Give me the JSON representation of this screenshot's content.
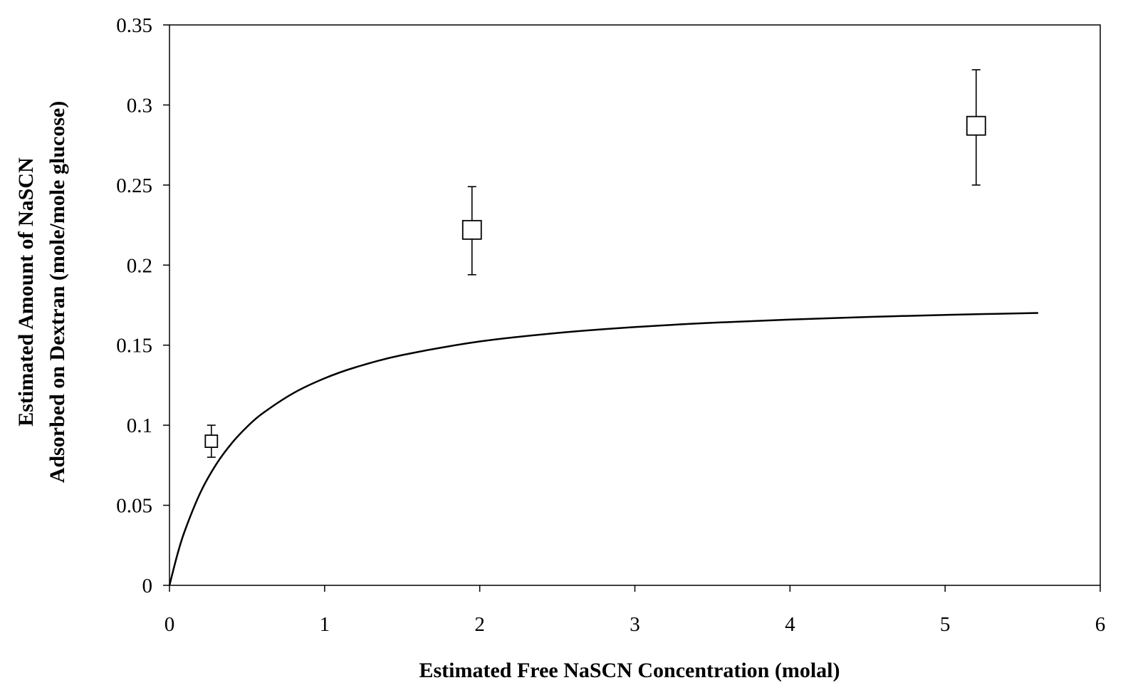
{
  "chart_data": {
    "type": "scatter",
    "title": "",
    "xlabel": "Estimated Free NaSCN Concentration (molal)",
    "ylabel_lines": [
      "Estimated Amount of NaSCN",
      "Adsorbed on Dextran (mole/mole glucose)"
    ],
    "xlim": [
      0,
      6
    ],
    "ylim": [
      0,
      0.35
    ],
    "x_ticks": [
      "0",
      "1",
      "2",
      "3",
      "4",
      "5",
      "6"
    ],
    "y_ticks": [
      "0",
      "0.05",
      "0.1",
      "0.15",
      "0.2",
      "0.25",
      "0.3",
      "0.35"
    ],
    "grid": false,
    "legend": "none",
    "series": [
      {
        "kind": "points",
        "marker": "open-square",
        "points": [
          {
            "x": 0.27,
            "y": 0.09,
            "y_err_low": 0.08,
            "y_err_high": 0.1
          },
          {
            "x": 1.95,
            "y": 0.222,
            "y_err_low": 0.194,
            "y_err_high": 0.249
          },
          {
            "x": 5.2,
            "y": 0.287,
            "y_err_low": 0.25,
            "y_err_high": 0.322
          }
        ]
      },
      {
        "kind": "fitted-curve",
        "x": [
          0,
          0.05,
          0.1,
          0.2,
          0.3,
          0.4,
          0.5,
          0.6,
          0.8,
          1.0,
          1.2,
          1.5,
          2.0,
          2.5,
          3.0,
          3.5,
          4.0,
          4.5,
          5.0,
          5.6
        ],
        "y": [
          0,
          0.0189,
          0.0344,
          0.0581,
          0.0754,
          0.0886,
          0.099,
          0.1074,
          0.1201,
          0.1293,
          0.1362,
          0.1438,
          0.1523,
          0.1576,
          0.1613,
          0.164,
          0.166,
          0.1676,
          0.1689,
          0.1701
        ]
      }
    ]
  },
  "colors": {
    "background": "#ffffff",
    "ink": "#000000"
  }
}
